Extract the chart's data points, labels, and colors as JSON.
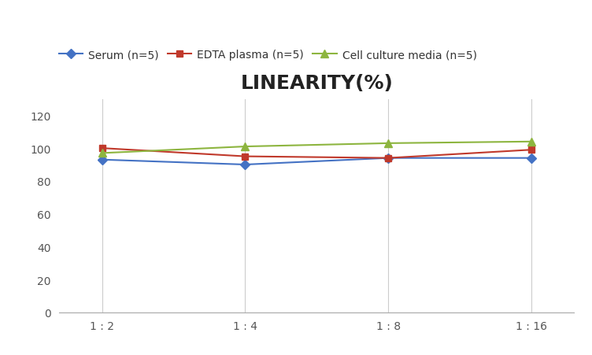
{
  "title": "LINEARITY(%)",
  "title_fontsize": 18,
  "title_fontweight": "bold",
  "x_labels": [
    "1 : 2",
    "1 : 4",
    "1 : 8",
    "1 : 16"
  ],
  "x_positions": [
    0,
    1,
    2,
    3
  ],
  "series": [
    {
      "label": "Serum (n=5)",
      "values": [
        93,
        90,
        94,
        94
      ],
      "color": "#4472C4",
      "marker": "D",
      "markersize": 6,
      "linewidth": 1.5
    },
    {
      "label": "EDTA plasma (n=5)",
      "values": [
        100,
        95,
        94,
        99
      ],
      "color": "#C0392B",
      "marker": "s",
      "markersize": 6,
      "linewidth": 1.5
    },
    {
      "label": "Cell culture media (n=5)",
      "values": [
        97,
        101,
        103,
        104
      ],
      "color": "#8DB53F",
      "marker": "^",
      "markersize": 7,
      "linewidth": 1.5
    }
  ],
  "ylim": [
    0,
    130
  ],
  "yticks": [
    0,
    20,
    40,
    60,
    80,
    100,
    120
  ],
  "background_color": "#ffffff",
  "grid_color": "#cccccc",
  "legend_fontsize": 10,
  "axis_tick_fontsize": 10
}
